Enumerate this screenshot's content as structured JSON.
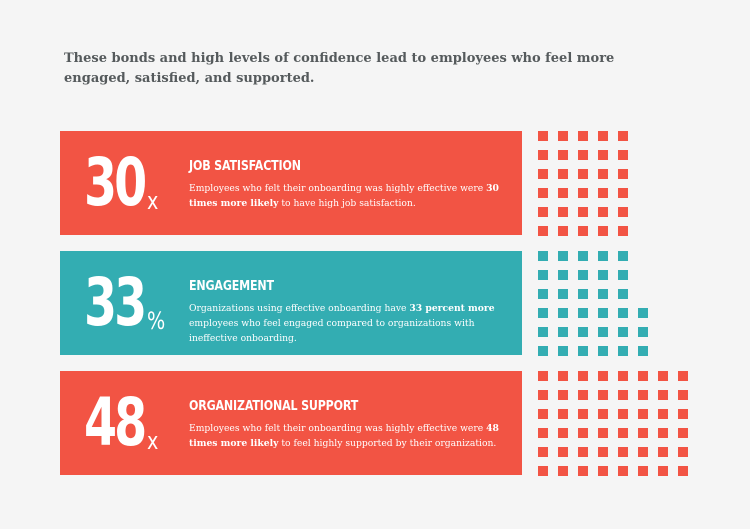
{
  "intro": "These bonds and high levels of confidence lead to employees who feel more engaged, satisfied, and supported.",
  "colors": {
    "coral": "#f25444",
    "teal": "#33adb2",
    "background": "#f5f5f5",
    "text": "#555a5c"
  },
  "stats": [
    {
      "number": "30",
      "unit": "x",
      "title": "JOB SATISFACTION",
      "desc_before": "Employees who felt their onboarding was highly effective were ",
      "desc_bold": "30 times more likely",
      "desc_after": " to have high job satisfaction.",
      "color": "#f25444",
      "squares": 30,
      "grid_columns": 5
    },
    {
      "number": "33",
      "unit": "%",
      "title": "ENGAGEMENT",
      "desc_before": "Organizations using effective onboarding have ",
      "desc_bold": "33 percent more",
      "desc_after": " employees who feel engaged compared to organizations with ineffective onboarding.",
      "color": "#33adb2",
      "squares": 33,
      "grid_columns": 6
    },
    {
      "number": "48",
      "unit": "x",
      "title": "ORGANIZATIONAL SUPPORT",
      "desc_before": "Employees who felt their onboarding was highly effective were ",
      "desc_bold": "48 times more likely",
      "desc_after": " to feel highly supported by their organization.",
      "color": "#f25444",
      "squares": 48,
      "grid_columns": 8
    }
  ]
}
